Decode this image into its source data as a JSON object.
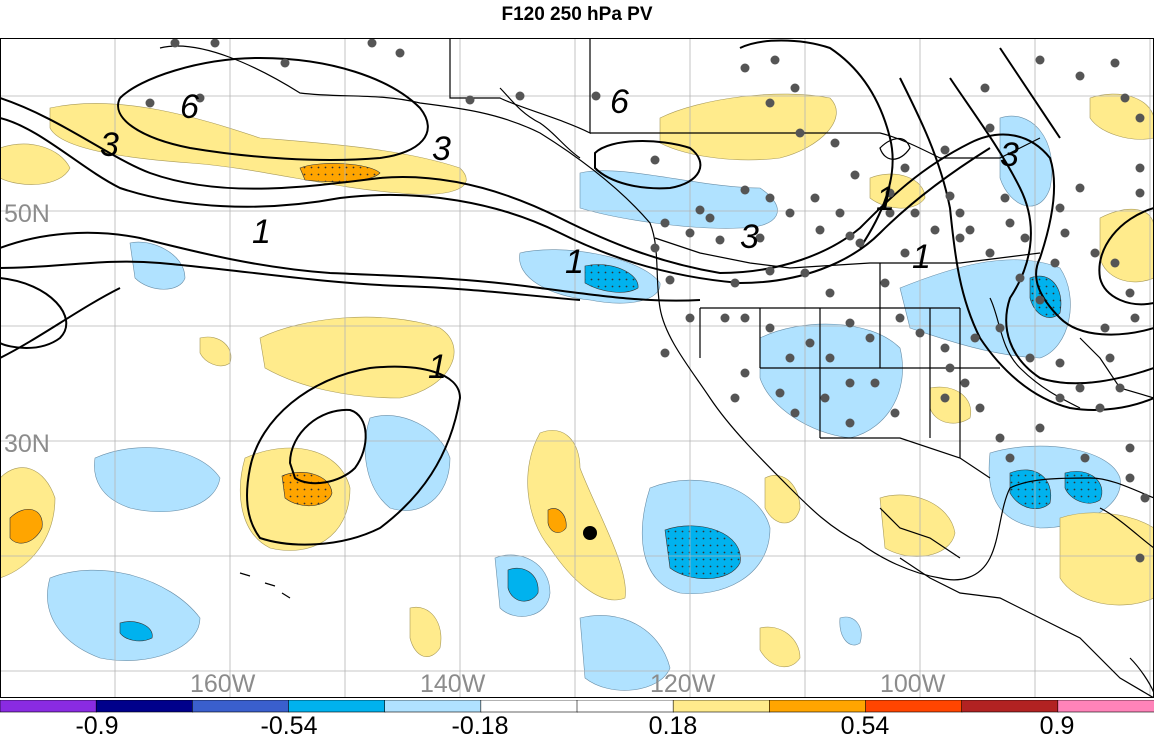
{
  "title": "F120 250 hPa PV",
  "map": {
    "lat_labels": [
      {
        "text": "50N",
        "lat": 50
      },
      {
        "text": "30N",
        "lat": 30
      }
    ],
    "lon_labels": [
      {
        "text": "160W",
        "lon": -160
      },
      {
        "text": "140W",
        "lon": -140
      },
      {
        "text": "120W",
        "lon": -120
      },
      {
        "text": "100W",
        "lon": -100
      }
    ],
    "contour_labels": [
      "6",
      "3",
      "3",
      "1",
      "1",
      "6",
      "3",
      "1",
      "1",
      "3",
      "1",
      "3"
    ],
    "colors": {
      "land_outline": "#000000",
      "grid": "#b4b4b4",
      "station_dot": "#555555",
      "label_gray": "#8c8c8c"
    }
  },
  "colorbar": {
    "colors": [
      "#8a2be2",
      "#00008b",
      "#3a5fcd",
      "#00b2ee",
      "#b0e2ff",
      "#ffffff",
      "#ffffff",
      "#ffeb8c",
      "#ffa500",
      "#ff4500",
      "#b22222",
      "#ff83b9"
    ],
    "tick_labels": [
      "-0.9",
      "-0.54",
      "-0.18",
      "0.18",
      "0.54",
      "0.9"
    ]
  }
}
